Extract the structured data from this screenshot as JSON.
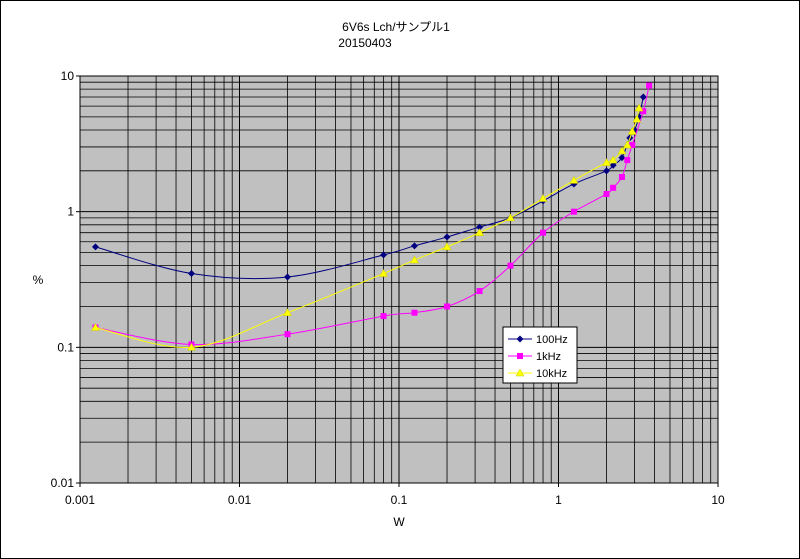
{
  "chart_data": {
    "type": "scatter",
    "title": "6V6s Lch/サンプル1",
    "subtitle": "20150403",
    "xlabel": "W",
    "ylabel": "%",
    "xscale": "log",
    "yscale": "log",
    "xlim": [
      0.001,
      10
    ],
    "ylim": [
      0.01,
      10
    ],
    "xticks": [
      "0.001",
      "0.01",
      "0.1",
      "1",
      "10"
    ],
    "yticks": [
      "0.01",
      "0.1",
      "1",
      "10"
    ],
    "grid": true,
    "legend_position": "center-right",
    "plot_background": "#c0c0c0",
    "series": [
      {
        "name": "100Hz",
        "color": "#000080",
        "marker": "diamond",
        "x": [
          0.00125,
          0.005,
          0.02,
          0.08,
          0.125,
          0.2,
          0.32,
          0.5,
          0.8,
          1.25,
          2.0,
          2.2,
          2.5,
          2.8,
          3.0,
          3.2,
          3.4
        ],
        "y": [
          0.55,
          0.35,
          0.33,
          0.48,
          0.56,
          0.65,
          0.77,
          0.9,
          1.2,
          1.6,
          2.0,
          2.2,
          2.5,
          3.5,
          4.0,
          5.0,
          7.0
        ]
      },
      {
        "name": "1kHz",
        "color": "#ff00ff",
        "marker": "square",
        "x": [
          0.00125,
          0.005,
          0.02,
          0.08,
          0.125,
          0.2,
          0.32,
          0.5,
          0.8,
          1.25,
          2.0,
          2.2,
          2.5,
          2.7,
          2.9,
          3.4,
          3.7
        ],
        "y": [
          0.14,
          0.105,
          0.125,
          0.17,
          0.18,
          0.2,
          0.26,
          0.4,
          0.7,
          1.0,
          1.35,
          1.5,
          1.8,
          2.4,
          3.1,
          5.5,
          8.5
        ]
      },
      {
        "name": "10kHz",
        "color": "#ffff00",
        "marker": "triangle",
        "x": [
          0.00125,
          0.005,
          0.02,
          0.08,
          0.125,
          0.2,
          0.32,
          0.5,
          0.8,
          1.25,
          2.0,
          2.2,
          2.5,
          2.7,
          2.9,
          3.1,
          3.2
        ],
        "y": [
          0.14,
          0.1,
          0.18,
          0.35,
          0.44,
          0.55,
          0.7,
          0.9,
          1.25,
          1.7,
          2.3,
          2.4,
          2.8,
          3.1,
          3.9,
          4.8,
          5.8
        ]
      }
    ]
  }
}
